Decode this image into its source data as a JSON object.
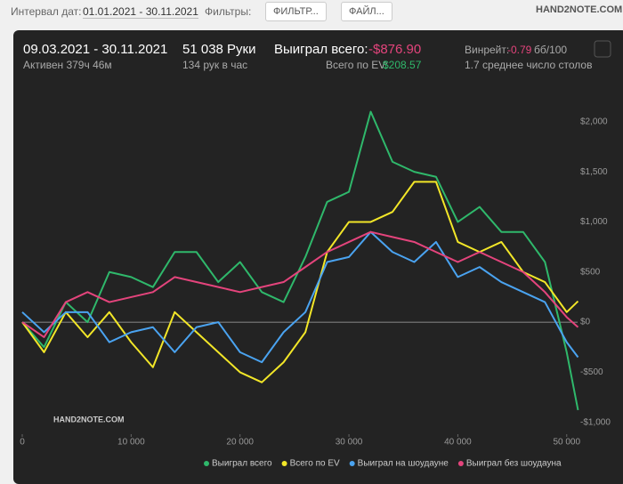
{
  "header": {
    "date_label": "Интервал дат:",
    "date_range": "01.01.2021 - 30.11.2021",
    "filters_label": "Фильтры:",
    "filter_button": "ФИЛЬТР...",
    "file_button": "ФАЙЛ...",
    "logo": "HAND2NOTE.COM"
  },
  "stats": {
    "period": "09.03.2021 - 30.11.2021",
    "active": "Активен 379ч 46м",
    "hands": "51 038 Руки",
    "hands_per_hour": "134 рук в час",
    "won_label": "Выиграл всего:",
    "won_value": "-$876.90",
    "ev_label": "Всего по EV:",
    "ev_value": "$208.57",
    "winrate_label": "Винрейт:",
    "winrate_value": "-0.79",
    "winrate_unit": "бб/100",
    "tables": "1.7 среднее число столов"
  },
  "chart_data": {
    "type": "line",
    "watermark": "HAND2NOTE.COM",
    "x": [
      0,
      2000,
      4000,
      6000,
      8000,
      10000,
      12000,
      14000,
      16000,
      18000,
      20000,
      22000,
      24000,
      26000,
      28000,
      30000,
      32000,
      34000,
      36000,
      38000,
      40000,
      42000,
      44000,
      46000,
      48000,
      50000,
      51038
    ],
    "series": [
      {
        "name": "Выиграл всего",
        "color": "#2fb86b",
        "values": [
          0,
          -250,
          200,
          0,
          500,
          450,
          350,
          700,
          700,
          400,
          600,
          300,
          200,
          650,
          1200,
          1300,
          2100,
          1600,
          1500,
          1450,
          1000,
          1150,
          900,
          900,
          600,
          -300,
          -877
        ]
      },
      {
        "name": "Всего по EV",
        "color": "#f2e628",
        "values": [
          0,
          -300,
          100,
          -150,
          100,
          -200,
          -450,
          100,
          -100,
          -300,
          -500,
          -600,
          -400,
          -100,
          700,
          1000,
          1000,
          1100,
          1400,
          1400,
          800,
          700,
          800,
          500,
          400,
          100,
          209
        ]
      },
      {
        "name": "Выиграл на шоудауне",
        "color": "#4aa3f0",
        "values": [
          100,
          -100,
          100,
          100,
          -200,
          -100,
          -50,
          -300,
          -50,
          0,
          -300,
          -400,
          -100,
          100,
          600,
          650,
          900,
          700,
          600,
          800,
          450,
          550,
          400,
          300,
          200,
          -200,
          -350
        ]
      },
      {
        "name": "Выиграл без шоудауна",
        "color": "#e4447c",
        "values": [
          0,
          -150,
          200,
          300,
          200,
          250,
          300,
          450,
          400,
          350,
          300,
          350,
          400,
          550,
          700,
          800,
          900,
          850,
          800,
          700,
          600,
          700,
          600,
          500,
          300,
          50,
          -50
        ]
      }
    ],
    "xlim": [
      0,
      51000
    ],
    "xticks": [
      0,
      {
        "value": 10000,
        "label": "10 000"
      },
      {
        "value": 20000,
        "label": "20 000"
      },
      {
        "value": 30000,
        "label": "30 000"
      },
      {
        "value": 40000,
        "label": "40 000"
      },
      {
        "value": 50000,
        "label": "50 000"
      }
    ],
    "ylim": [
      -1100,
      2300
    ],
    "yticks": [
      {
        "value": -1000,
        "label": "-$1,000"
      },
      {
        "value": -500,
        "label": "-$500"
      },
      {
        "value": 0,
        "label": "$0"
      },
      {
        "value": 500,
        "label": "$500"
      },
      {
        "value": 1000,
        "label": "$1,000"
      },
      {
        "value": 1500,
        "label": "$1,500"
      },
      {
        "value": 2000,
        "label": "$2,000"
      }
    ]
  }
}
